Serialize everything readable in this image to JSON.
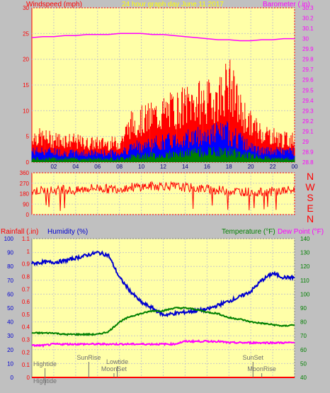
{
  "colors": {
    "background": "#c0c0c0",
    "plot_bg": "#ffffa8",
    "grid": "#c8c8c8",
    "wind": "#ff0000",
    "gust": "#0000ff",
    "wind_min": "#008000",
    "barometer": "#ff00ff",
    "humidity": "#0000d0",
    "temperature": "#008000",
    "dewpoint": "#ff00ff",
    "rain": "#ff0000",
    "annotation": "#707070"
  },
  "chart_data": [
    {
      "type": "line",
      "panel": "wind-baro",
      "title": "24 hour graph day   June 11 2017",
      "ylabel_left": "Windspeed (mph)",
      "ylabel_right": "Barometer (.in)",
      "ylim_left": [
        0,
        30
      ],
      "ylim_right": [
        28.8,
        30.3
      ],
      "yticks_left": [
        "0",
        "5",
        "10",
        "15",
        "20",
        "25",
        "30"
      ],
      "yticks_right": [
        "28.8",
        "28.9",
        "29",
        "29.1",
        "29.2",
        "29.3",
        "29.4",
        "29.5",
        "29.6",
        "29.7",
        "29.8",
        "29.9",
        "30",
        "30.1",
        "30.2",
        "30.3"
      ],
      "xticks": [
        "02",
        "04",
        "06",
        "08",
        "10",
        "12",
        "14",
        "16",
        "18",
        "20",
        "22",
        "00"
      ],
      "x_hours": [
        0,
        1,
        2,
        3,
        4,
        5,
        6,
        7,
        8,
        9,
        10,
        11,
        12,
        13,
        14,
        15,
        16,
        17,
        18,
        19,
        20,
        21,
        22,
        23,
        24
      ],
      "series": [
        {
          "key": "wind_max",
          "values": [
            7,
            6.5,
            6,
            6,
            5.5,
            5,
            5,
            5,
            5,
            10,
            11,
            12,
            13,
            14,
            15,
            16,
            16,
            17,
            21,
            14,
            10,
            8,
            7,
            6,
            6
          ]
        },
        {
          "key": "wind_avg",
          "values": [
            3,
            3,
            3,
            2.5,
            2.5,
            2.5,
            2.5,
            2.5,
            2.5,
            4,
            4.5,
            5,
            5.5,
            6,
            6.5,
            7,
            7.5,
            8,
            8,
            6,
            4,
            3,
            3,
            3,
            3
          ]
        },
        {
          "key": "wind_min",
          "values": [
            1,
            1,
            1,
            1,
            1,
            1,
            1,
            1,
            1,
            1.5,
            2,
            2,
            2,
            2.5,
            2.5,
            3,
            3,
            3,
            3,
            2.5,
            2,
            1.5,
            1,
            1,
            1
          ]
        },
        {
          "key": "barometer",
          "values": [
            30.01,
            30.02,
            30.02,
            30.03,
            30.03,
            30.04,
            30.04,
            30.04,
            30.05,
            30.05,
            30.05,
            30.04,
            30.04,
            30.03,
            30.02,
            30.01,
            30.0,
            29.99,
            29.99,
            29.98,
            29.98,
            29.99,
            29.99,
            30.0,
            30.0
          ]
        }
      ]
    },
    {
      "type": "scatter",
      "panel": "wind-direction",
      "ylim": [
        0,
        360
      ],
      "yticks": [
        "0",
        "90",
        "180",
        "270",
        "360"
      ],
      "direction_labels": [
        "N",
        "W",
        "S",
        "E",
        "N"
      ],
      "x_hours": [
        0,
        1,
        2,
        3,
        4,
        5,
        6,
        7,
        8,
        9,
        10,
        11,
        12,
        13,
        14,
        15,
        16,
        17,
        18,
        19,
        20,
        21,
        22,
        23,
        24
      ],
      "values": [
        200,
        210,
        205,
        215,
        200,
        225,
        230,
        220,
        225,
        235,
        240,
        245,
        250,
        240,
        235,
        225,
        220,
        210,
        205,
        200,
        195,
        190,
        200,
        205,
        210
      ]
    },
    {
      "type": "line",
      "panel": "rain-hum-temp",
      "ylabel_rain": "Rainfall (.in)",
      "ylabel_humidity": "Humidity (%)",
      "ylabel_temperature": "Temperature (°F)",
      "ylabel_dewpoint": "Dew Point (°F)",
      "ylim_rain": [
        0,
        1.1
      ],
      "ylim_humidity": [
        0,
        100
      ],
      "ylim_temp": [
        40,
        140
      ],
      "yticks_humidity": [
        "0",
        "10",
        "20",
        "30",
        "40",
        "50",
        "60",
        "70",
        "80",
        "90",
        "100"
      ],
      "yticks_rain": [
        "0",
        "0.1",
        "0.2",
        "0.3",
        "0.4",
        "0.5",
        "0.6",
        "0.7",
        "0.8",
        "0.9",
        "1",
        "1.1"
      ],
      "yticks_temp": [
        "40",
        "50",
        "60",
        "70",
        "80",
        "90",
        "100",
        "110",
        "120",
        "130",
        "140"
      ],
      "x_hours": [
        0,
        1,
        2,
        3,
        4,
        5,
        6,
        7,
        8,
        9,
        10,
        11,
        12,
        13,
        14,
        15,
        16,
        17,
        18,
        19,
        20,
        21,
        22,
        23,
        24
      ],
      "series": [
        {
          "key": "humidity",
          "values": [
            82,
            83,
            83,
            84,
            86,
            88,
            90,
            88,
            72,
            62,
            54,
            50,
            45,
            46,
            47,
            48,
            49,
            52,
            55,
            58,
            62,
            70,
            75,
            72,
            72
          ]
        },
        {
          "key": "temperature",
          "values": [
            72,
            72,
            72,
            71,
            71,
            71,
            71,
            73,
            80,
            84,
            86,
            88,
            88,
            90,
            90,
            89,
            87,
            86,
            83,
            82,
            80,
            79,
            78,
            77,
            78
          ]
        },
        {
          "key": "dewpoint",
          "values": [
            63,
            63,
            64,
            64,
            64,
            64,
            64,
            64,
            64,
            64,
            64,
            64,
            64,
            64,
            66,
            66,
            66,
            66,
            65,
            65,
            65,
            65,
            65,
            65,
            65
          ]
        },
        {
          "key": "rain",
          "values": [
            0,
            0,
            0,
            0,
            0,
            0,
            0,
            0,
            0,
            0,
            0,
            0,
            0,
            0,
            0,
            0,
            0,
            0,
            0,
            0,
            0,
            0,
            0,
            0,
            0
          ]
        }
      ],
      "annotations": [
        {
          "text": "Hightide",
          "hour": 1.2,
          "row": "upper"
        },
        {
          "text": "Hightide",
          "hour": 1.2,
          "row": "bottom"
        },
        {
          "text": "SunRise",
          "hour": 5.2,
          "row": "top"
        },
        {
          "text": "Lowtide",
          "hour": 7.8,
          "row": "top2"
        },
        {
          "text": "MoonSet",
          "hour": 7.5,
          "row": "mid"
        },
        {
          "text": "SunSet",
          "hour": 20.2,
          "row": "top"
        },
        {
          "text": "MoonRise",
          "hour": 21.0,
          "row": "mid"
        }
      ]
    }
  ]
}
